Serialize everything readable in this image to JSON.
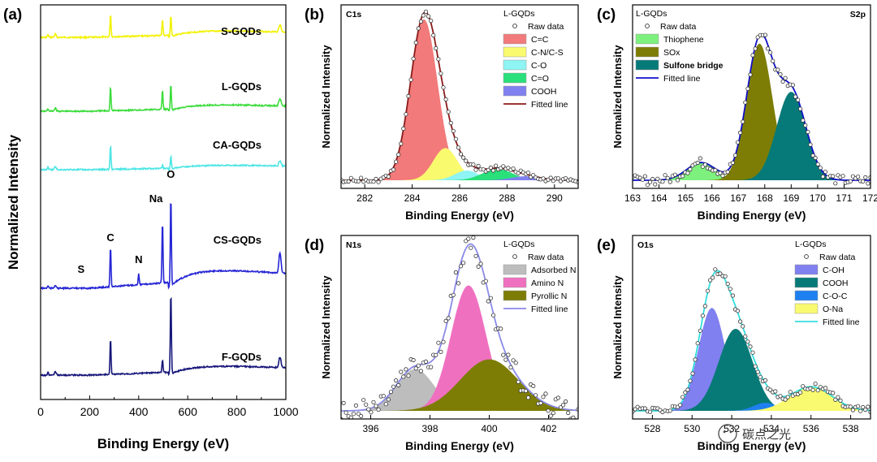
{
  "chart_data": [
    {
      "id": "a",
      "type": "line",
      "panel_label": "(a)",
      "xlabel": "Binding Energy (eV)",
      "ylabel": "Normalized Intensity",
      "xlim": [
        0,
        1000
      ],
      "xticks": [
        0,
        200,
        400,
        600,
        800,
        1000
      ],
      "series": [
        {
          "name": "S-GQDs",
          "color": "#f2f205",
          "offset": 4
        },
        {
          "name": "L-GQDs",
          "color": "#3ddc3d",
          "offset": 3
        },
        {
          "name": "CA-GQDs",
          "color": "#4ee5e5",
          "offset": 2
        },
        {
          "name": "CS-GQDs",
          "color": "#2525d6",
          "offset": 1
        },
        {
          "name": "F-GQDs",
          "color": "#16167a",
          "offset": 0
        }
      ],
      "peaks": [
        {
          "label": "S",
          "x": 165
        },
        {
          "label": "C",
          "x": 285
        },
        {
          "label": "N",
          "x": 400
        },
        {
          "label": "Na",
          "x": 497
        },
        {
          "label": "O",
          "x": 531
        }
      ]
    },
    {
      "id": "b",
      "type": "area",
      "panel_label": "(b)",
      "corner_label": "C1s",
      "legend_title": "L-GQDs",
      "xlabel": "Binding Energy (eV)",
      "ylabel": "Normalized Intensity",
      "xlim": [
        281,
        291
      ],
      "xticks": [
        282,
        284,
        286,
        288,
        290
      ],
      "raw_label": "Raw data",
      "fit_label": "Fitted line",
      "fit_color": "#8b1a1a",
      "components": [
        {
          "name": "C=C",
          "center": 284.5,
          "fwhm": 1.35,
          "height": 1.0,
          "color": "#f27a7a"
        },
        {
          "name": "C-N/C-S",
          "center": 285.4,
          "fwhm": 1.2,
          "height": 0.2,
          "color": "#fafa6e"
        },
        {
          "name": "C-O",
          "center": 286.3,
          "fwhm": 1.2,
          "height": 0.06,
          "color": "#8ef4f4"
        },
        {
          "name": "C=O",
          "center": 287.6,
          "fwhm": 1.5,
          "height": 0.07,
          "color": "#29e07a"
        },
        {
          "name": "COOH",
          "center": 288.8,
          "fwhm": 1.4,
          "height": 0.025,
          "color": "#8080f0"
        }
      ]
    },
    {
      "id": "c",
      "type": "area",
      "panel_label": "(c)",
      "corner_label": "S2p",
      "legend_title": "L-GQDs",
      "xlabel": "Binding Energy (eV)",
      "ylabel": "Normalized Intensity",
      "xlim": [
        163,
        172
      ],
      "xticks": [
        163,
        164,
        165,
        166,
        167,
        168,
        169,
        170,
        171,
        172
      ],
      "raw_label": "Raw data",
      "fit_label": "Fitted line",
      "fit_color": "#1010c8",
      "components": [
        {
          "name": "Thiophene",
          "center": 165.6,
          "fwhm": 1.3,
          "height": 0.11,
          "color": "#7ef07e"
        },
        {
          "name": "SOx",
          "center": 167.8,
          "fwhm": 1.15,
          "height": 0.85,
          "color": "#7d7d05"
        },
        {
          "name": "Sulfone bridge",
          "center": 169.0,
          "fwhm": 1.3,
          "height": 0.55,
          "color": "#067a78"
        }
      ]
    },
    {
      "id": "d",
      "type": "area",
      "panel_label": "(d)",
      "corner_label": "N1s",
      "legend_title": "L-GQDs",
      "xlabel": "Binding Energy (eV)",
      "ylabel": "Normalized Intensity",
      "xlim": [
        395,
        403
      ],
      "xticks": [
        396,
        398,
        400,
        402
      ],
      "raw_label": "Raw data",
      "fit_label": "Fitted line",
      "fit_color": "#8a8ae8",
      "components": [
        {
          "name": "Adsorbed N",
          "center": 397.5,
          "fwhm": 1.5,
          "height": 0.26,
          "color": "#bdbdbd"
        },
        {
          "name": "Amino N",
          "center": 399.3,
          "fwhm": 1.4,
          "height": 0.78,
          "color": "#f070c0"
        },
        {
          "name": "Pyrollic N",
          "center": 400.0,
          "fwhm": 2.3,
          "height": 0.32,
          "color": "#7d7d05"
        }
      ]
    },
    {
      "id": "e",
      "type": "area",
      "panel_label": "(e)",
      "corner_label": "O1s",
      "legend_title": "L-GQDs",
      "xlabel": "Binding Energy (eV)",
      "ylabel": "Normalized Intensity",
      "xlim": [
        527,
        539
      ],
      "xticks": [
        528,
        530,
        532,
        534,
        536,
        538
      ],
      "raw_label": "Raw data",
      "fit_label": "Fitted line",
      "fit_color": "#33dddd",
      "components": [
        {
          "name": "C-OH",
          "center": 531.0,
          "fwhm": 1.6,
          "height": 0.64,
          "color": "#8080f0"
        },
        {
          "name": "COOH",
          "center": 532.2,
          "fwhm": 2.0,
          "height": 0.51,
          "color": "#077a78"
        },
        {
          "name": "C-O-C",
          "center": 533.7,
          "fwhm": 1.4,
          "height": 0.05,
          "color": "#1e80f0"
        },
        {
          "name": "O-Na",
          "center": 536.0,
          "fwhm": 2.5,
          "height": 0.15,
          "color": "#fafa70"
        }
      ]
    }
  ],
  "watermark": "碳点之光"
}
